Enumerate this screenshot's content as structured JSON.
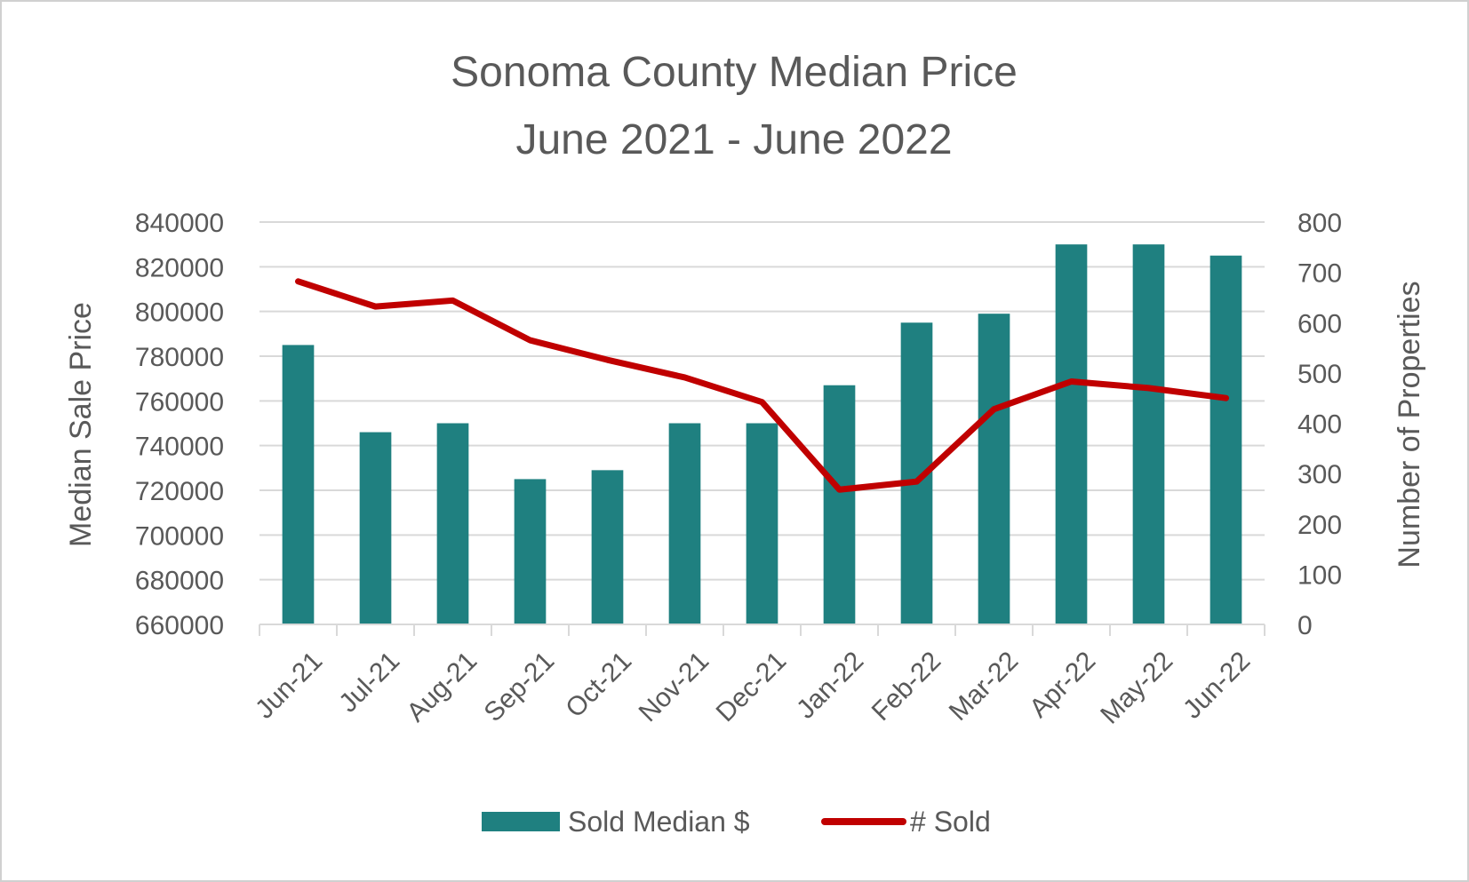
{
  "chart_data": {
    "type": "bar",
    "title": "Sonoma County Median Price",
    "subtitle": "June 2021 - June 2022",
    "categories": [
      "Jun-21",
      "Jul-21",
      "Aug-21",
      "Sep-21",
      "Oct-21",
      "Nov-21",
      "Dec-21",
      "Jan-22",
      "Feb-22",
      "Mar-22",
      "Apr-22",
      "May-22",
      "Jun-22"
    ],
    "series": [
      {
        "name": "Sold Median $",
        "type": "bar",
        "axis": "left",
        "color": "#1f8080",
        "values": [
          785000,
          746000,
          750000,
          725000,
          729000,
          750000,
          750000,
          767000,
          795000,
          799000,
          830000,
          830000,
          825000
        ]
      },
      {
        "name": "# Sold",
        "type": "line",
        "axis": "right",
        "color": "#c00000",
        "values": [
          682,
          632,
          644,
          565,
          526,
          491,
          442,
          268,
          284,
          428,
          483,
          470,
          450
        ]
      }
    ],
    "ylabel": "Median Sale Price",
    "ylim": [
      660000,
      840000
    ],
    "yticks": [
      "660000",
      "680000",
      "700000",
      "720000",
      "740000",
      "760000",
      "780000",
      "800000",
      "820000",
      "840000"
    ],
    "y2label": "Number of Properties",
    "y2lim": [
      0,
      800
    ],
    "y2ticks": [
      "0",
      "100",
      "200",
      "300",
      "400",
      "500",
      "600",
      "700",
      "800"
    ],
    "grid": true,
    "legend_position": "bottom"
  }
}
